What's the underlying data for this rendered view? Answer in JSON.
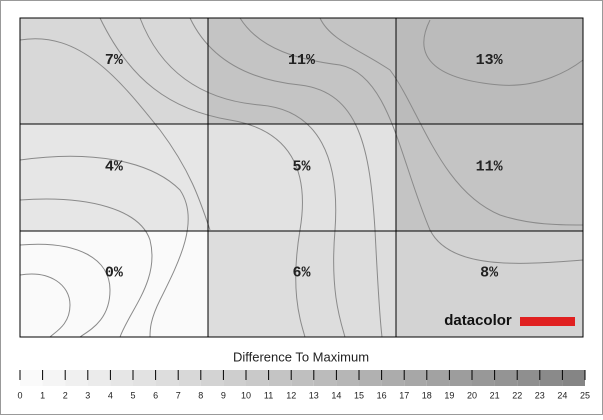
{
  "chart_data": {
    "type": "heatmap",
    "values": [
      [
        7,
        11,
        13
      ],
      [
        4,
        5,
        11
      ],
      [
        0,
        6,
        8
      ]
    ],
    "value_labels": [
      [
        "7%",
        "11%",
        "13%"
      ],
      [
        "4%",
        "5%",
        "11%"
      ],
      [
        "0%",
        "6%",
        "8%"
      ]
    ],
    "logo": "datacolor",
    "colorbar": {
      "title": "Difference To Maximum",
      "lim": [
        0,
        25
      ],
      "ticks": [
        0,
        1,
        2,
        3,
        4,
        5,
        6,
        7,
        8,
        9,
        10,
        11,
        12,
        13,
        14,
        15,
        16,
        17,
        18,
        19,
        20,
        21,
        22,
        23,
        24,
        25
      ],
      "colors": [
        "#fafafa",
        "#808080"
      ]
    }
  }
}
